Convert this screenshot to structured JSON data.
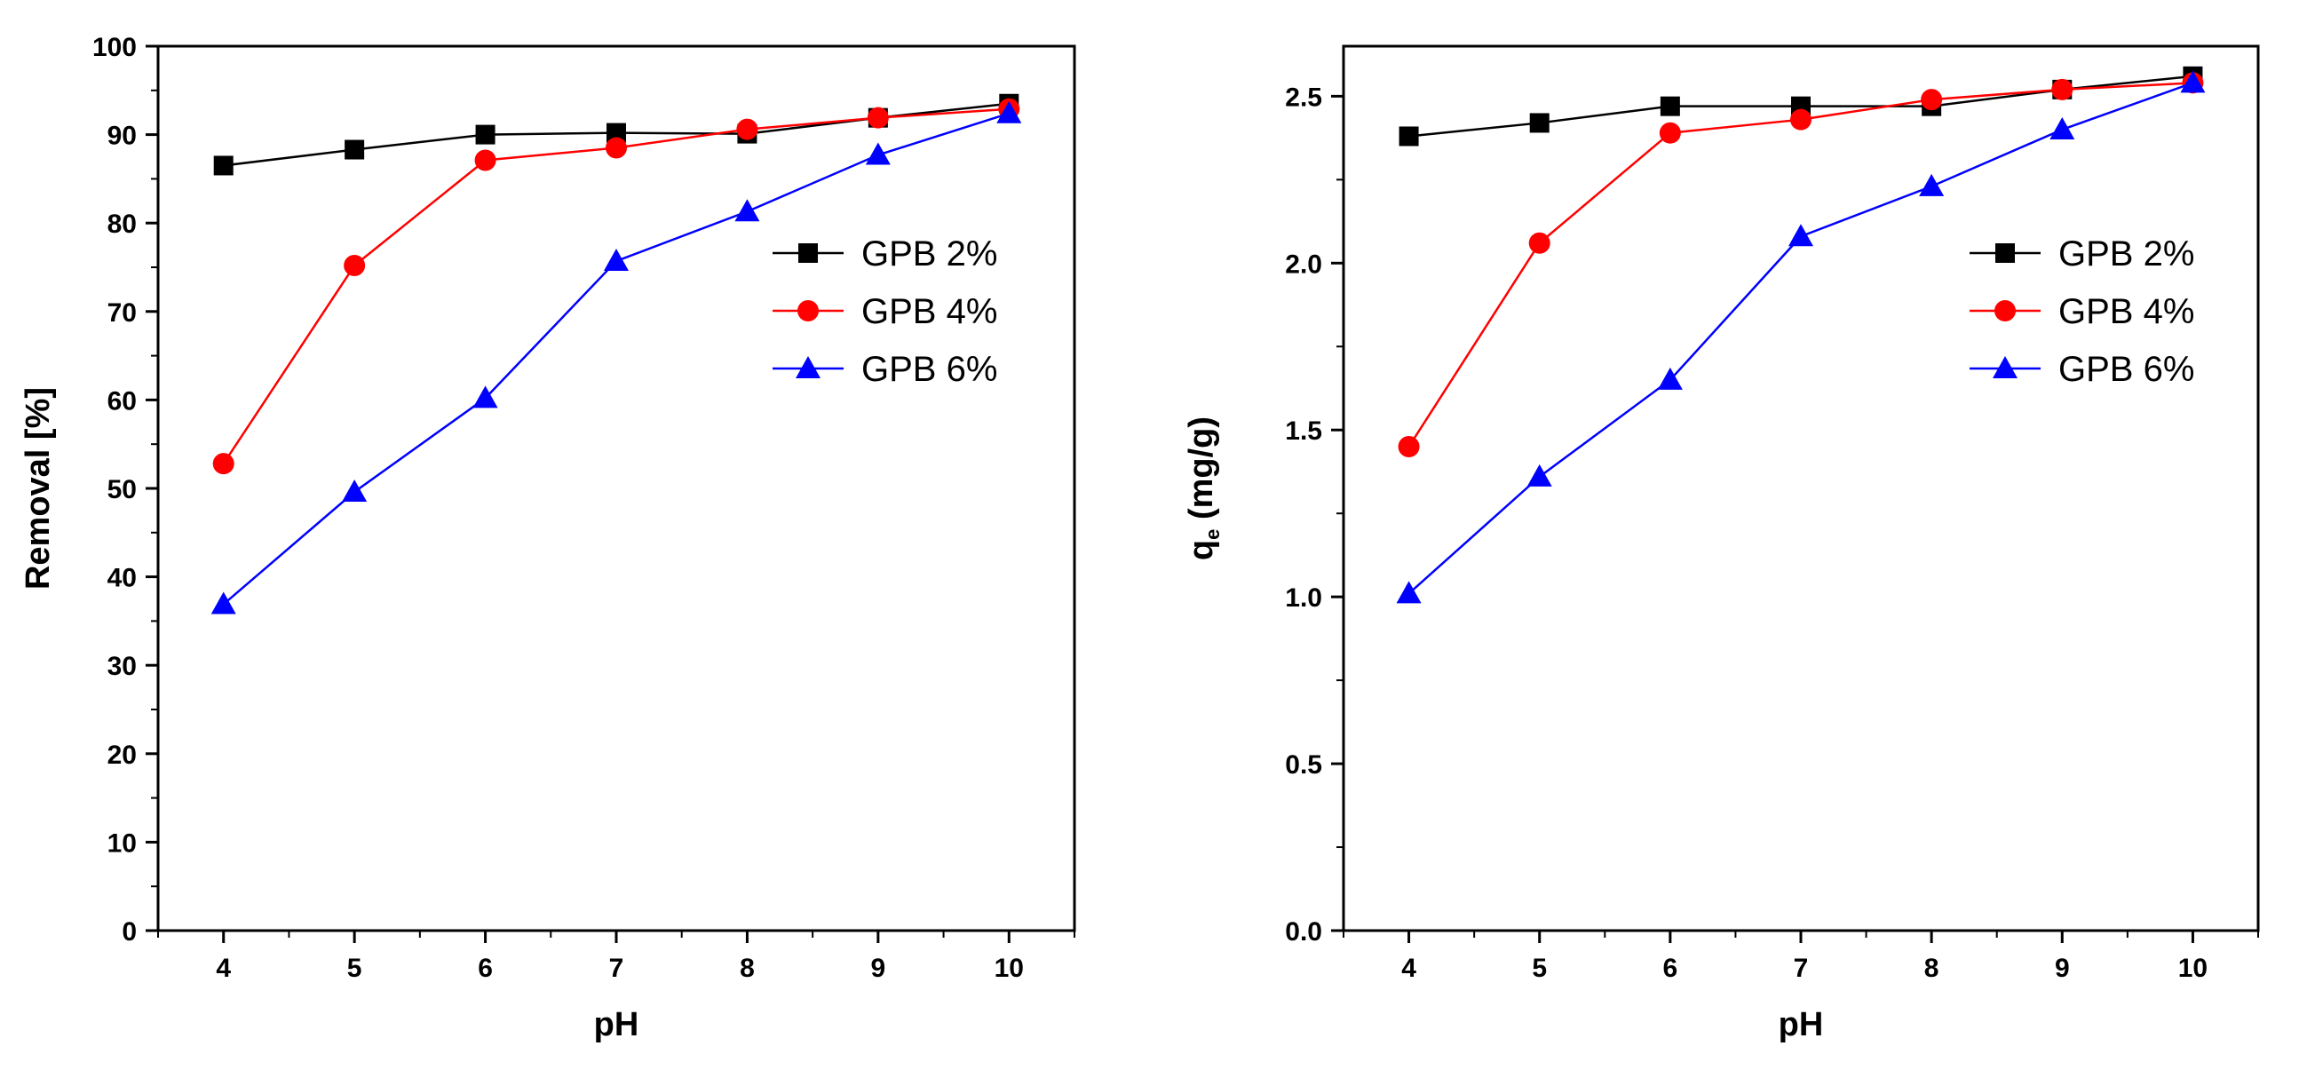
{
  "colors": {
    "s1": "#000000",
    "s2": "#ff0000",
    "s3": "#0000ff"
  },
  "chart_data": [
    {
      "type": "line",
      "title": "",
      "xlabel": "pH",
      "ylabel": "Removal [%]",
      "x": [
        4,
        5,
        6,
        7,
        8,
        9,
        10
      ],
      "xlim": [
        3.5,
        10.5
      ],
      "ylim": [
        0,
        100
      ],
      "xticks": [
        "4",
        "5",
        "6",
        "7",
        "8",
        "9",
        "10"
      ],
      "yticks": [
        "0",
        "10",
        "20",
        "30",
        "40",
        "50",
        "60",
        "70",
        "80",
        "90",
        "100"
      ],
      "legend_position": "right-middle",
      "series": [
        {
          "name": "GPB 2%",
          "marker": "square",
          "values": [
            86.5,
            88.3,
            90.0,
            90.2,
            90.1,
            91.9,
            93.5
          ]
        },
        {
          "name": "GPB 4%",
          "marker": "circle",
          "values": [
            52.8,
            75.2,
            87.1,
            88.5,
            90.6,
            91.9,
            92.9
          ]
        },
        {
          "name": "GPB 6%",
          "marker": "triangle",
          "values": [
            36.9,
            49.6,
            60.2,
            75.7,
            81.3,
            87.7,
            92.4
          ]
        }
      ]
    },
    {
      "type": "line",
      "title": "",
      "xlabel": "pH",
      "ylabel": "q",
      "ylabel_sub": "e",
      "ylabel_rest": " (mg/g)",
      "x": [
        4,
        5,
        6,
        7,
        8,
        9,
        10
      ],
      "xlim": [
        3.5,
        10.5
      ],
      "ylim": [
        0,
        2.65
      ],
      "xticks": [
        "4",
        "5",
        "6",
        "7",
        "8",
        "9",
        "10"
      ],
      "yticks": [
        "0.0",
        "0.5",
        "1.0",
        "1.5",
        "2.0",
        "2.5"
      ],
      "legend_position": "right-middle",
      "series": [
        {
          "name": "GPB 2%",
          "marker": "square",
          "values": [
            2.38,
            2.42,
            2.47,
            2.47,
            2.47,
            2.52,
            2.56
          ]
        },
        {
          "name": "GPB 4%",
          "marker": "circle",
          "values": [
            1.45,
            2.06,
            2.39,
            2.43,
            2.49,
            2.52,
            2.54
          ]
        },
        {
          "name": "GPB 6%",
          "marker": "triangle",
          "values": [
            1.01,
            1.36,
            1.65,
            2.08,
            2.23,
            2.4,
            2.54
          ]
        }
      ]
    }
  ]
}
